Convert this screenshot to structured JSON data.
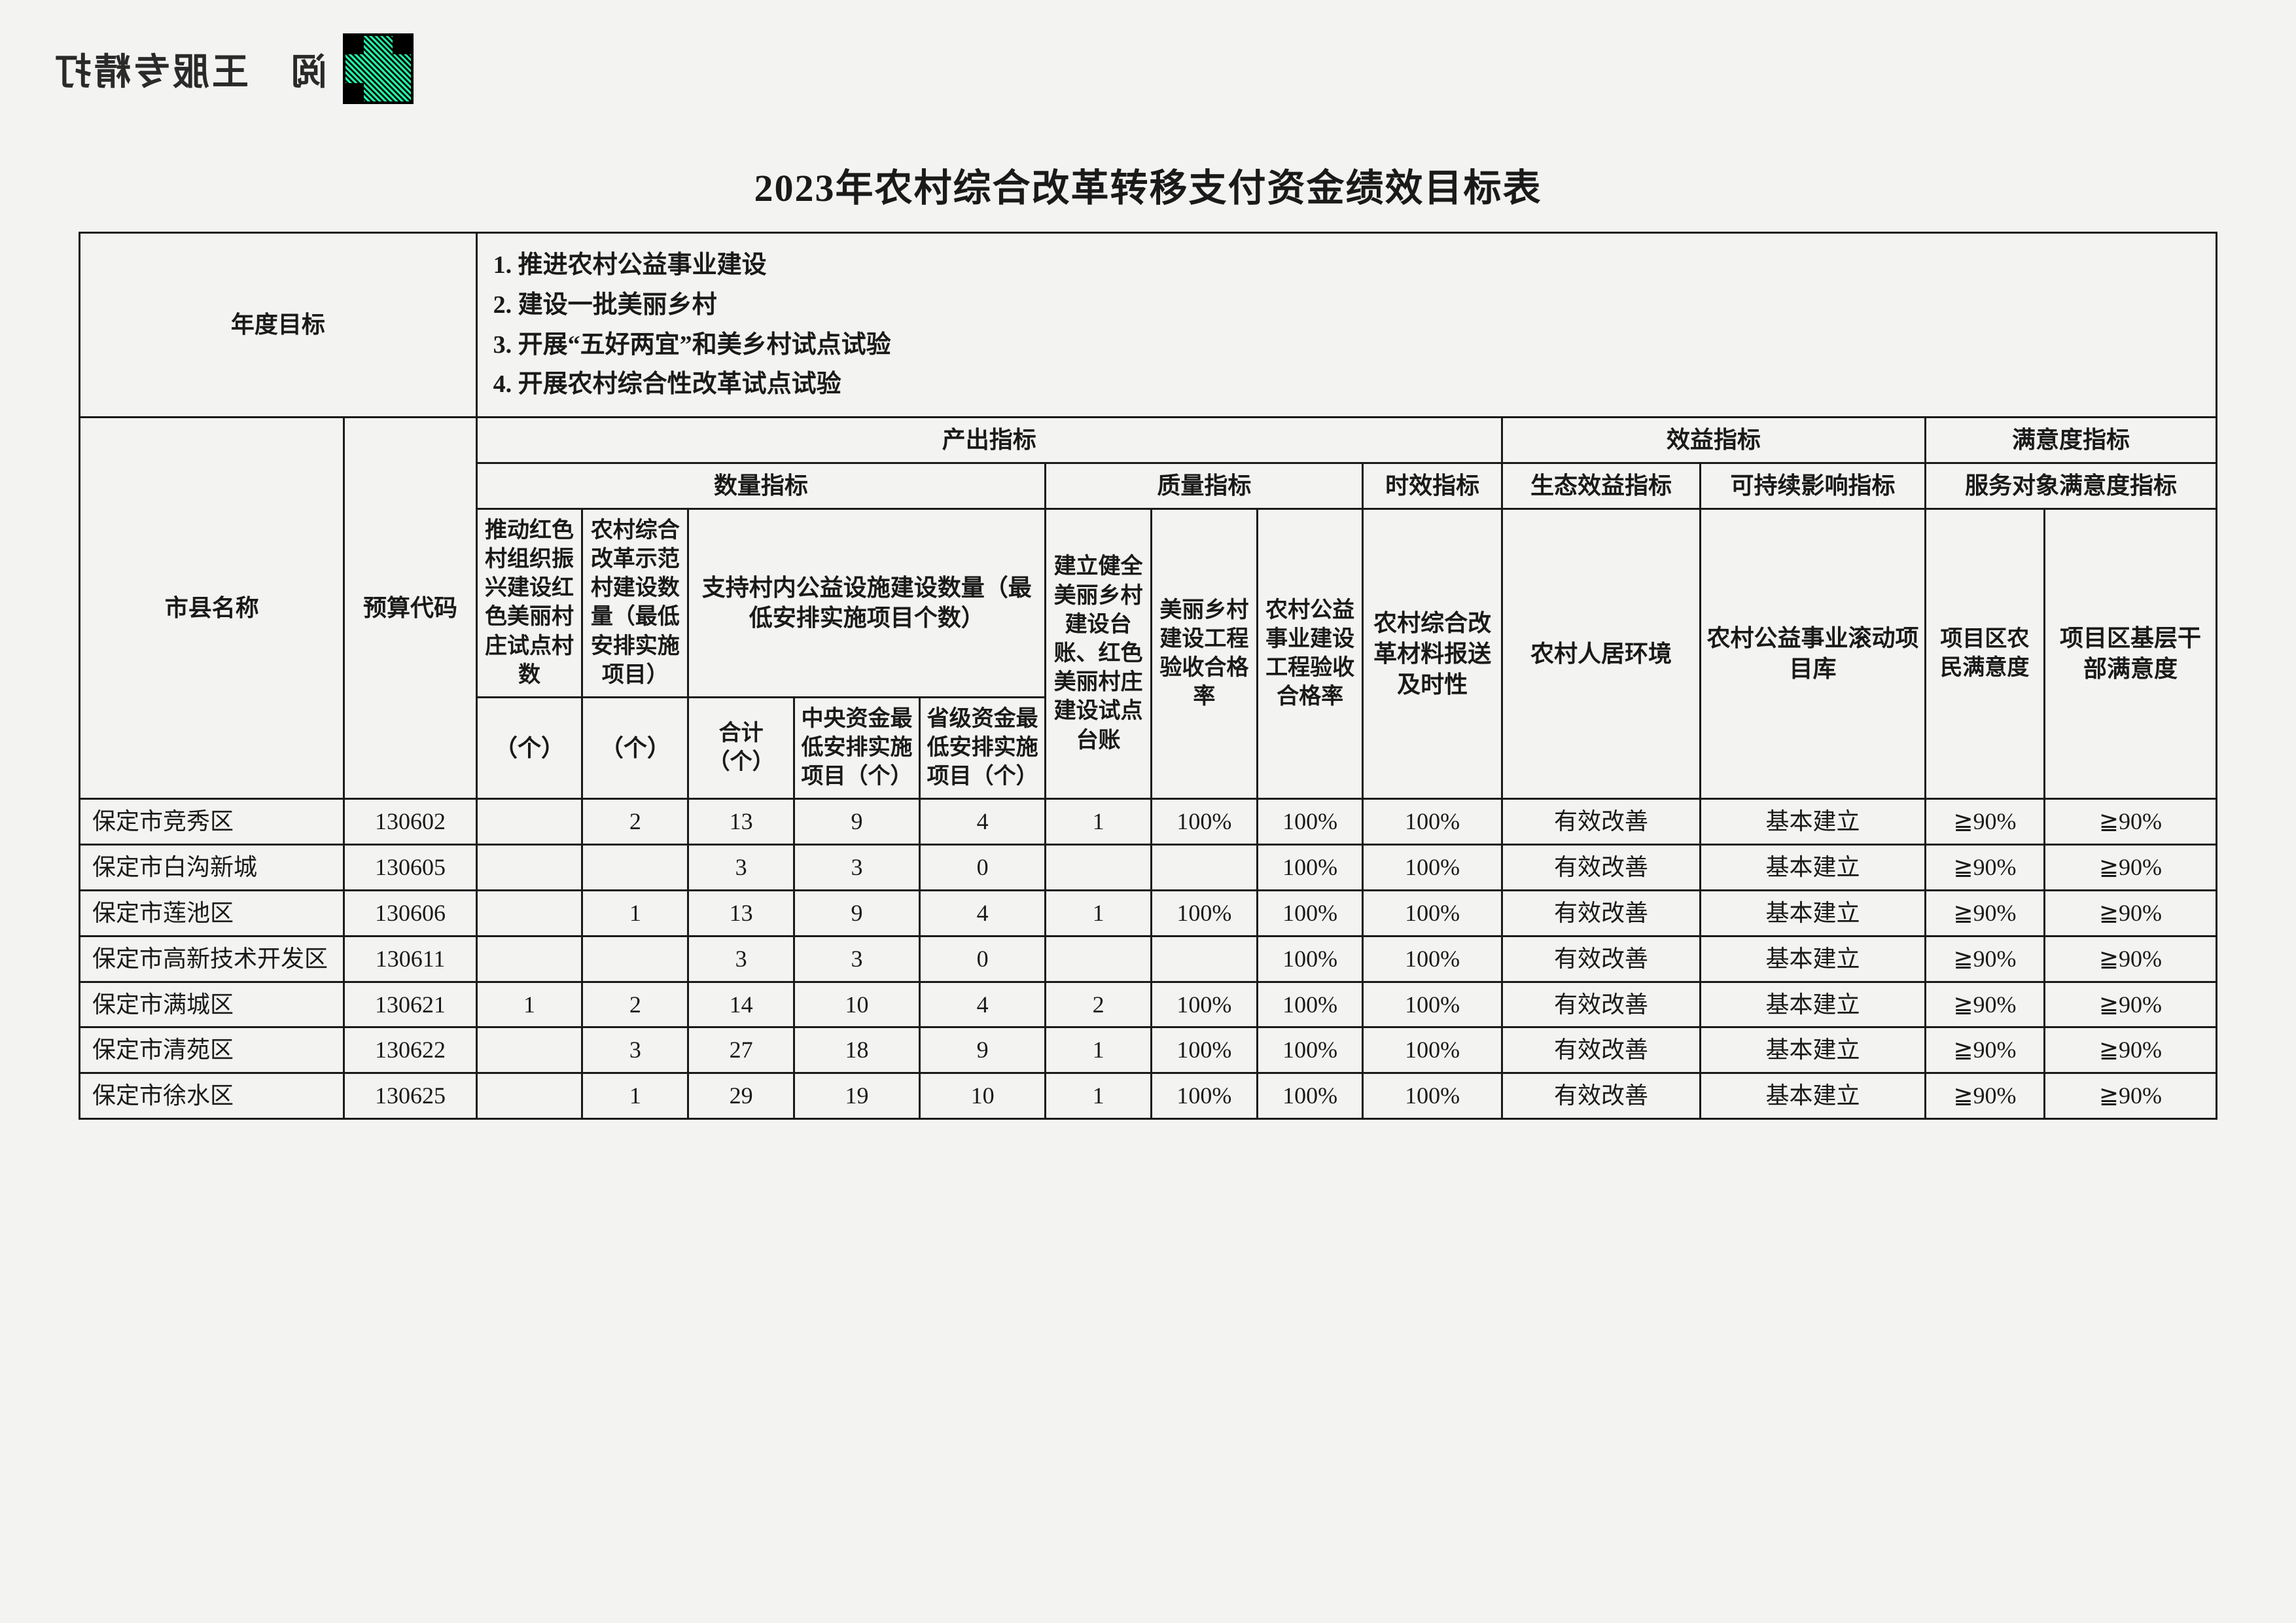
{
  "header_mirrored_text": "阅　王服专精打",
  "title": "2023年农村综合改革转移支付资金绩效目标表",
  "annual_goals_label": "年度目标",
  "annual_goals": [
    "1. 推进农村公益事业建设",
    "2. 建设一批美丽乡村",
    "3. 开展“五好两宜”和美乡村试点试验",
    "4. 开展农村综合性改革试点试验"
  ],
  "headers": {
    "city_county": "市县名称",
    "budget_code": "预算代码",
    "output": "产出指标",
    "quantity": "数量指标",
    "quality": "质量指标",
    "timeliness": "时效指标",
    "benefit": "效益指标",
    "eco_benefit": "生态效益指标",
    "sustain": "可持续影响指标",
    "satisfaction": "满意度指标",
    "service_sat": "服务对象满意度指标",
    "red_village": "推动红色村组织振兴建设红色美丽村庄试点村数",
    "reform_village": "农村综合改革示范村建设数量（最低安排实施项目）",
    "facility_count": "支持村内公益设施建设数量（最低安排实施项目个数）",
    "facility_total": "合计（个）",
    "facility_central": "中央资金最低安排实施项目（个）",
    "facility_prov": "省级资金最低安排实施项目（个）",
    "ledger": "建立健全美丽乡村建设台账、红色美丽村庄建设试点台账",
    "quality_rate1": "美丽乡村建设工程验收合格率",
    "quality_rate2": "农村公益事业建设工程验收合格率",
    "timeliness_col": "农村综合改革材料报送及时性",
    "env_col": "农村人居环境",
    "project_lib": "农村公益事业滚动项目库",
    "sat_farmer": "项目区农民满意度",
    "sat_cadre": "项目区基层干部满意度",
    "unit_ge": "（个）"
  },
  "rows": [
    {
      "name": "保定市竞秀区",
      "code": "130602",
      "red": "",
      "reform": "2",
      "total": "13",
      "central": "9",
      "prov": "4",
      "ledger": "1",
      "q1": "100%",
      "q2": "100%",
      "time": "100%",
      "env": "有效改善",
      "lib": "基本建立",
      "sat1": "≧90%",
      "sat2": "≧90%"
    },
    {
      "name": "保定市白沟新城",
      "code": "130605",
      "red": "",
      "reform": "",
      "total": "3",
      "central": "3",
      "prov": "0",
      "ledger": "",
      "q1": "",
      "q2": "100%",
      "time": "100%",
      "env": "有效改善",
      "lib": "基本建立",
      "sat1": "≧90%",
      "sat2": "≧90%"
    },
    {
      "name": "保定市莲池区",
      "code": "130606",
      "red": "",
      "reform": "1",
      "total": "13",
      "central": "9",
      "prov": "4",
      "ledger": "1",
      "q1": "100%",
      "q2": "100%",
      "time": "100%",
      "env": "有效改善",
      "lib": "基本建立",
      "sat1": "≧90%",
      "sat2": "≧90%"
    },
    {
      "name": "保定市高新技术开发区",
      "code": "130611",
      "red": "",
      "reform": "",
      "total": "3",
      "central": "3",
      "prov": "0",
      "ledger": "",
      "q1": "",
      "q2": "100%",
      "time": "100%",
      "env": "有效改善",
      "lib": "基本建立",
      "sat1": "≧90%",
      "sat2": "≧90%"
    },
    {
      "name": "保定市满城区",
      "code": "130621",
      "red": "1",
      "reform": "2",
      "total": "14",
      "central": "10",
      "prov": "4",
      "ledger": "2",
      "q1": "100%",
      "q2": "100%",
      "time": "100%",
      "env": "有效改善",
      "lib": "基本建立",
      "sat1": "≧90%",
      "sat2": "≧90%"
    },
    {
      "name": "保定市清苑区",
      "code": "130622",
      "red": "",
      "reform": "3",
      "total": "27",
      "central": "18",
      "prov": "9",
      "ledger": "1",
      "q1": "100%",
      "q2": "100%",
      "time": "100%",
      "env": "有效改善",
      "lib": "基本建立",
      "sat1": "≧90%",
      "sat2": "≧90%"
    },
    {
      "name": "保定市徐水区",
      "code": "130625",
      "red": "",
      "reform": "1",
      "total": "29",
      "central": "19",
      "prov": "10",
      "ledger": "1",
      "q1": "100%",
      "q2": "100%",
      "time": "100%",
      "env": "有效改善",
      "lib": "基本建立",
      "sat1": "≧90%",
      "sat2": "≧90%"
    }
  ]
}
